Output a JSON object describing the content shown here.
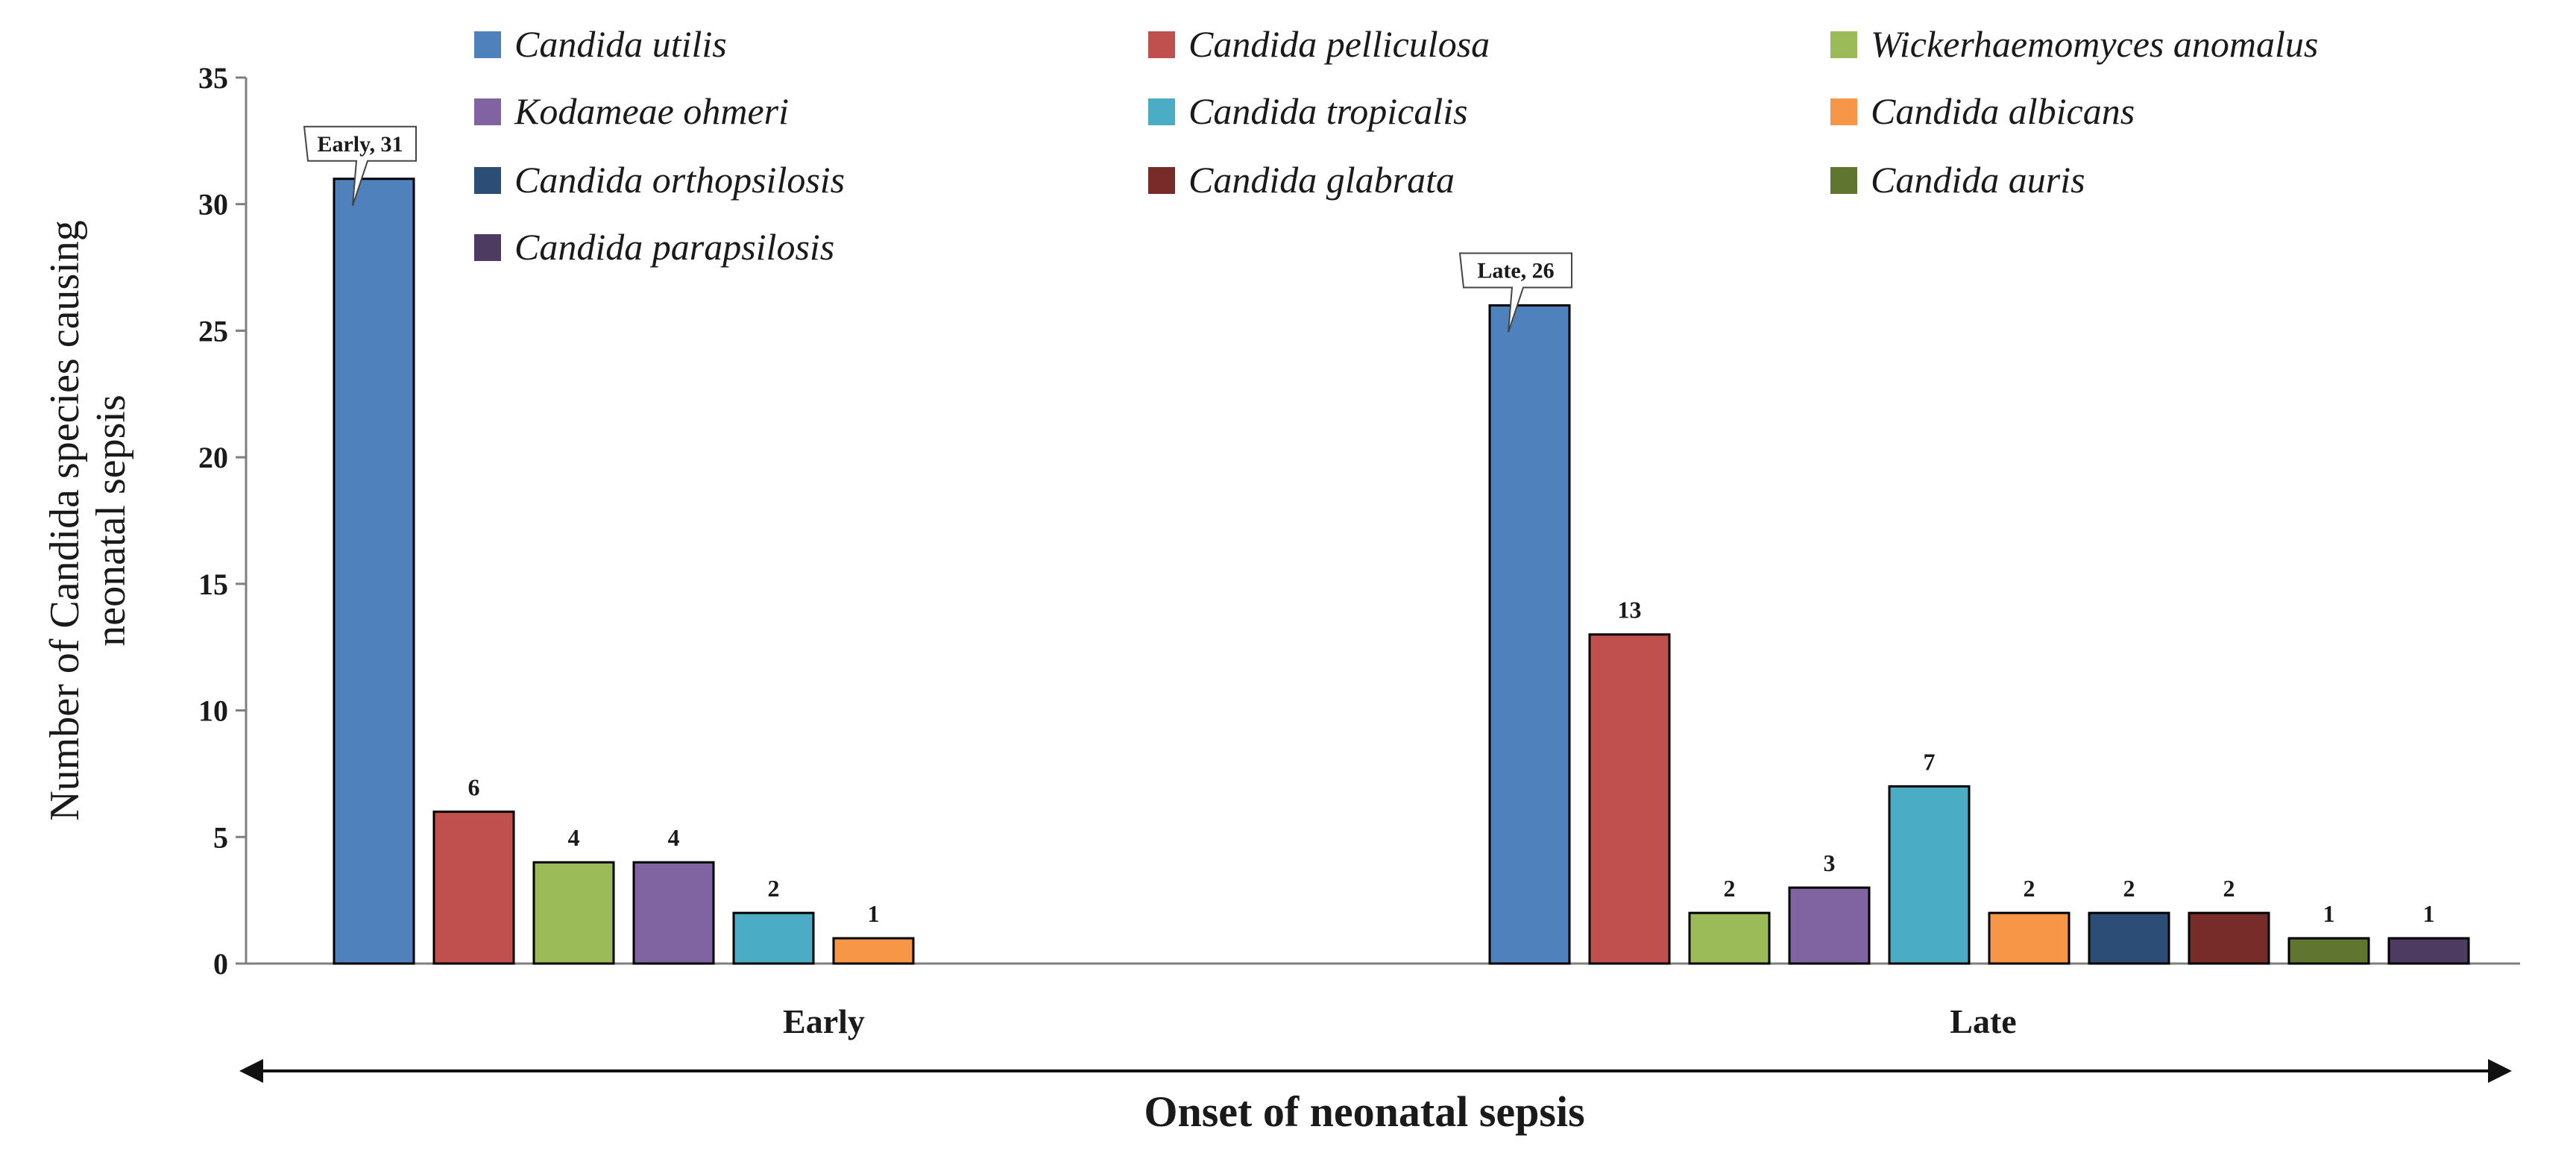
{
  "chart_data": {
    "type": "bar",
    "categories": [
      "Early",
      "Late"
    ],
    "xlabel": "Onset of neonatal sepsis",
    "ylabel_lines": [
      "Number of Candida species causing",
      "neonatal sepsis"
    ],
    "ylim": [
      0,
      35
    ],
    "yticks": [
      0,
      5,
      10,
      15,
      20,
      25,
      30,
      35
    ],
    "grid": false,
    "legend_position": "top",
    "series": [
      {
        "name": "Candida utilis",
        "color": "#4f81bd",
        "values": [
          31,
          26
        ]
      },
      {
        "name": "Candida pelliculosa",
        "color": "#c0504d",
        "values": [
          6,
          13
        ]
      },
      {
        "name": "Wickerhaemomyces anomalus",
        "color": "#9bbb59",
        "values": [
          4,
          2
        ]
      },
      {
        "name": "Kodameae  ohmeri",
        "color": "#8064a2",
        "values": [
          4,
          3
        ]
      },
      {
        "name": "Candida tropicalis",
        "color": "#4bacc6",
        "values": [
          2,
          7
        ]
      },
      {
        "name": "Candida albicans",
        "color": "#f79646",
        "values": [
          1,
          2
        ]
      },
      {
        "name": "Candida orthopsilosis",
        "color": "#2c4d75",
        "values": [
          null,
          2
        ]
      },
      {
        "name": "Candida glabrata",
        "color": "#772c2a",
        "values": [
          null,
          2
        ]
      },
      {
        "name": "Candida auris",
        "color": "#5f7530",
        "values": [
          null,
          1
        ]
      },
      {
        "name": "Candida parapsilosis",
        "color": "#4d3b62",
        "values": [
          null,
          1
        ]
      }
    ],
    "callouts": [
      {
        "category": "Early",
        "series": "Candida utilis",
        "text": "Early, 31"
      },
      {
        "category": "Late",
        "series": "Candida utilis",
        "text": "Late, 26"
      }
    ]
  }
}
